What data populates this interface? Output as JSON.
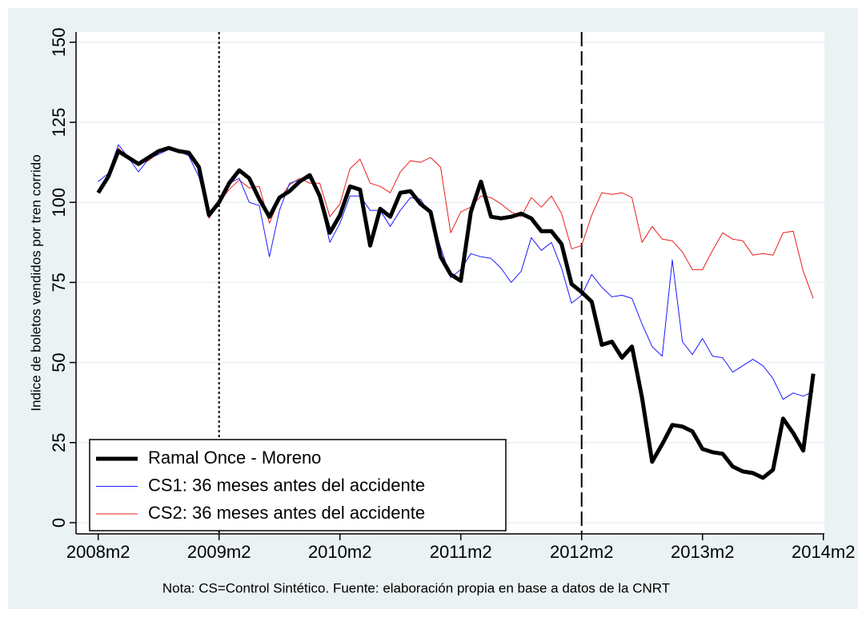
{
  "chart_data": {
    "type": "line",
    "y_label": "Indice de boletos vendidos por tren corrido",
    "note": "Nota: CS=Control Sintético. Fuente: elaboración propia en base a datos de la CNRT",
    "x": [
      577,
      578,
      579,
      580,
      581,
      582,
      583,
      584,
      585,
      586,
      587,
      588,
      589,
      590,
      591,
      592,
      593,
      594,
      595,
      596,
      597,
      598,
      599,
      600,
      601,
      602,
      603,
      604,
      605,
      606,
      607,
      608,
      609,
      610,
      611,
      612,
      613,
      614,
      615,
      616,
      617,
      618,
      619,
      620,
      621,
      622,
      623,
      624,
      625,
      626,
      627,
      628,
      629,
      630,
      631,
      632,
      633,
      634,
      635,
      636,
      637,
      638,
      639,
      640,
      641,
      642,
      643,
      644,
      645,
      646,
      647,
      648
    ],
    "series": [
      {
        "name": "Ramal Once - Moreno",
        "color": "#000000",
        "width": 5,
        "values": [
          103,
          108,
          116,
          114,
          112,
          114,
          116,
          117,
          116,
          115.5,
          111,
          96,
          100,
          106,
          110,
          107.5,
          101,
          95.5,
          101.5,
          103.5,
          106.5,
          108.5,
          102,
          90.5,
          96,
          105,
          104,
          86.5,
          98,
          95.5,
          103,
          103.5,
          99.5,
          97,
          83,
          77.5,
          75.5,
          97,
          106.5,
          95.5,
          95,
          95.5,
          96.5,
          95,
          91,
          91,
          87,
          74.5,
          72,
          69,
          55.5,
          56.5,
          51.5,
          55,
          39,
          19,
          24.5,
          30.5,
          30,
          28.5,
          23,
          22,
          21.5,
          17.5,
          16,
          15.5,
          14,
          16.5,
          32.5,
          28,
          22.5,
          46.5
        ]
      },
      {
        "name": "CS1: 36 meses antes del accidente",
        "color": "#1a1aff",
        "width": 1,
        "values": [
          106.5,
          109,
          118,
          114,
          109.5,
          113.5,
          115,
          116.5,
          116,
          114.5,
          108,
          95.5,
          101,
          106,
          107.5,
          100,
          99,
          83,
          97.5,
          106,
          107,
          107.5,
          101,
          87.5,
          93.5,
          102,
          102,
          97.5,
          97.5,
          92.5,
          97.5,
          101.5,
          101,
          96,
          86,
          76.5,
          79,
          84,
          83,
          82.5,
          79.5,
          75,
          78.5,
          89,
          85,
          87.5,
          79.5,
          68.5,
          71,
          77.5,
          73.5,
          70.5,
          71,
          70,
          62,
          55,
          52,
          82,
          56.5,
          52.5,
          57.5,
          52,
          51.5,
          47,
          49,
          51,
          49,
          45,
          38.5,
          40.5,
          39.5,
          41
        ]
      },
      {
        "name": "CS2: 36 meses antes del accidente",
        "color": "#e8201c",
        "width": 1,
        "values": [
          103,
          108.5,
          117,
          113.5,
          112,
          113,
          115.5,
          117,
          116.5,
          116,
          110,
          95,
          100,
          104,
          107,
          104.5,
          105,
          93.5,
          101,
          105.5,
          107.5,
          106,
          106,
          95.5,
          99.5,
          110.5,
          113.5,
          106,
          105,
          103,
          109.5,
          113,
          112.5,
          114,
          111,
          90.5,
          97,
          98.5,
          102,
          101.5,
          99.5,
          97,
          95.5,
          101.5,
          98.5,
          102,
          96.5,
          85.5,
          86.5,
          96,
          103,
          102.5,
          103,
          101.5,
          87.5,
          92.5,
          88.5,
          88,
          84.5,
          79,
          79,
          85,
          90.5,
          88.5,
          88,
          83.5,
          84,
          83.5,
          90.5,
          91,
          78.5,
          70
        ]
      }
    ],
    "xlim": [
      574.8,
      649.1
    ],
    "xticks": [
      {
        "value": 577,
        "label": "2008m2"
      },
      {
        "value": 589,
        "label": "2009m2"
      },
      {
        "value": 601,
        "label": "2010m2"
      },
      {
        "value": 613,
        "label": "2011m2"
      },
      {
        "value": 625,
        "label": "2012m2"
      },
      {
        "value": 637,
        "label": "2013m2"
      },
      {
        "value": 649,
        "label": "2014m2"
      }
    ],
    "ylim": [
      -3.5,
      153.2
    ],
    "yticks": [
      0,
      25,
      50,
      75,
      100,
      125,
      150
    ],
    "xlines": [
      {
        "value": 589,
        "style": "dotted"
      },
      {
        "value": 625,
        "style": "dashed"
      }
    ],
    "grid": true,
    "legend": "lower left"
  }
}
